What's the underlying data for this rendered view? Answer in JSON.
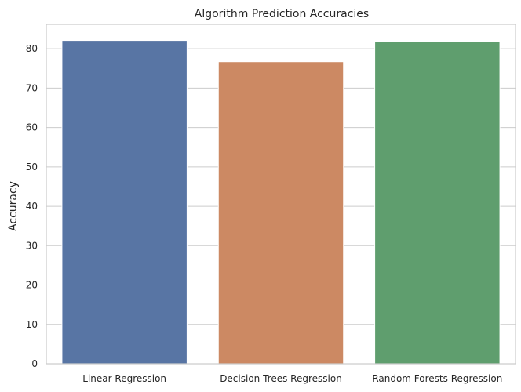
{
  "chart_data": {
    "type": "bar",
    "title": "Algorithm Prediction Accuracies",
    "xlabel": "",
    "ylabel": "Accuracy",
    "categories": [
      "Linear Regression",
      "Decision Trees Regression",
      "Random Forests Regression"
    ],
    "values": [
      82.1,
      76.7,
      81.9
    ],
    "colors": [
      "#5875a4",
      "#cc8963",
      "#5f9e6e"
    ],
    "ylim": [
      0,
      86.2
    ],
    "yticks": [
      0,
      10,
      20,
      30,
      40,
      50,
      60,
      70,
      80
    ],
    "grid": true,
    "legend": "none"
  }
}
